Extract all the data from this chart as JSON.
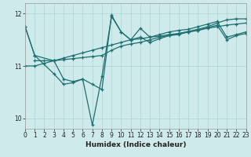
{
  "xlabel": "Humidex (Indice chaleur)",
  "xlim": [
    0,
    23
  ],
  "ylim": [
    9.8,
    12.2
  ],
  "yticks": [
    10,
    11,
    12
  ],
  "xticks": [
    0,
    1,
    2,
    3,
    4,
    5,
    6,
    7,
    8,
    9,
    10,
    11,
    12,
    13,
    14,
    15,
    16,
    17,
    18,
    19,
    20,
    21,
    22,
    23
  ],
  "background_color": "#ceeaeb",
  "grid_color": "#aed4d5",
  "line_color": "#1e7070",
  "lines": [
    {
      "x": [
        0,
        1,
        2,
        3,
        4,
        5,
        6,
        7,
        8,
        9,
        10,
        11,
        12,
        13,
        14,
        15,
        16,
        17,
        18,
        19,
        20,
        21,
        22,
        23
      ],
      "y": [
        11.0,
        11.0,
        11.05,
        11.1,
        11.15,
        11.2,
        11.25,
        11.3,
        11.35,
        11.4,
        11.45,
        11.5,
        11.52,
        11.55,
        11.57,
        11.6,
        11.62,
        11.65,
        11.68,
        11.72,
        11.75,
        11.78,
        11.8,
        11.82
      ]
    },
    {
      "x": [
        0,
        1,
        3,
        4,
        5,
        6,
        7,
        8,
        9,
        10,
        11,
        12,
        13,
        14,
        15,
        16,
        17,
        18,
        19,
        20,
        21,
        22,
        23
      ],
      "y": [
        11.75,
        11.2,
        11.1,
        10.75,
        10.7,
        10.75,
        10.65,
        10.55,
        11.97,
        11.65,
        11.5,
        11.55,
        11.45,
        11.52,
        11.58,
        11.6,
        11.65,
        11.68,
        11.73,
        11.78,
        11.5,
        11.58,
        11.62
      ]
    },
    {
      "x": [
        0,
        1,
        3,
        4,
        5,
        6,
        7,
        8,
        9,
        10,
        11,
        12,
        13,
        14,
        15,
        16,
        17,
        18,
        19,
        20,
        21,
        22,
        23
      ],
      "y": [
        11.75,
        11.2,
        10.85,
        10.65,
        10.68,
        10.75,
        9.87,
        10.8,
        11.95,
        11.65,
        11.5,
        11.72,
        11.55,
        11.6,
        11.65,
        11.68,
        11.7,
        11.75,
        11.8,
        11.85,
        11.55,
        11.6,
        11.65
      ]
    },
    {
      "x": [
        1,
        2,
        3,
        4,
        5,
        6,
        7,
        8,
        9,
        10,
        11,
        12,
        13,
        14,
        15,
        16,
        17,
        18,
        19,
        20,
        21,
        22,
        23
      ],
      "y": [
        11.1,
        11.1,
        11.1,
        11.12,
        11.14,
        11.16,
        11.18,
        11.2,
        11.3,
        11.38,
        11.42,
        11.45,
        11.5,
        11.55,
        11.58,
        11.62,
        11.66,
        11.7,
        11.75,
        11.82,
        11.88,
        11.9,
        11.9
      ]
    }
  ]
}
